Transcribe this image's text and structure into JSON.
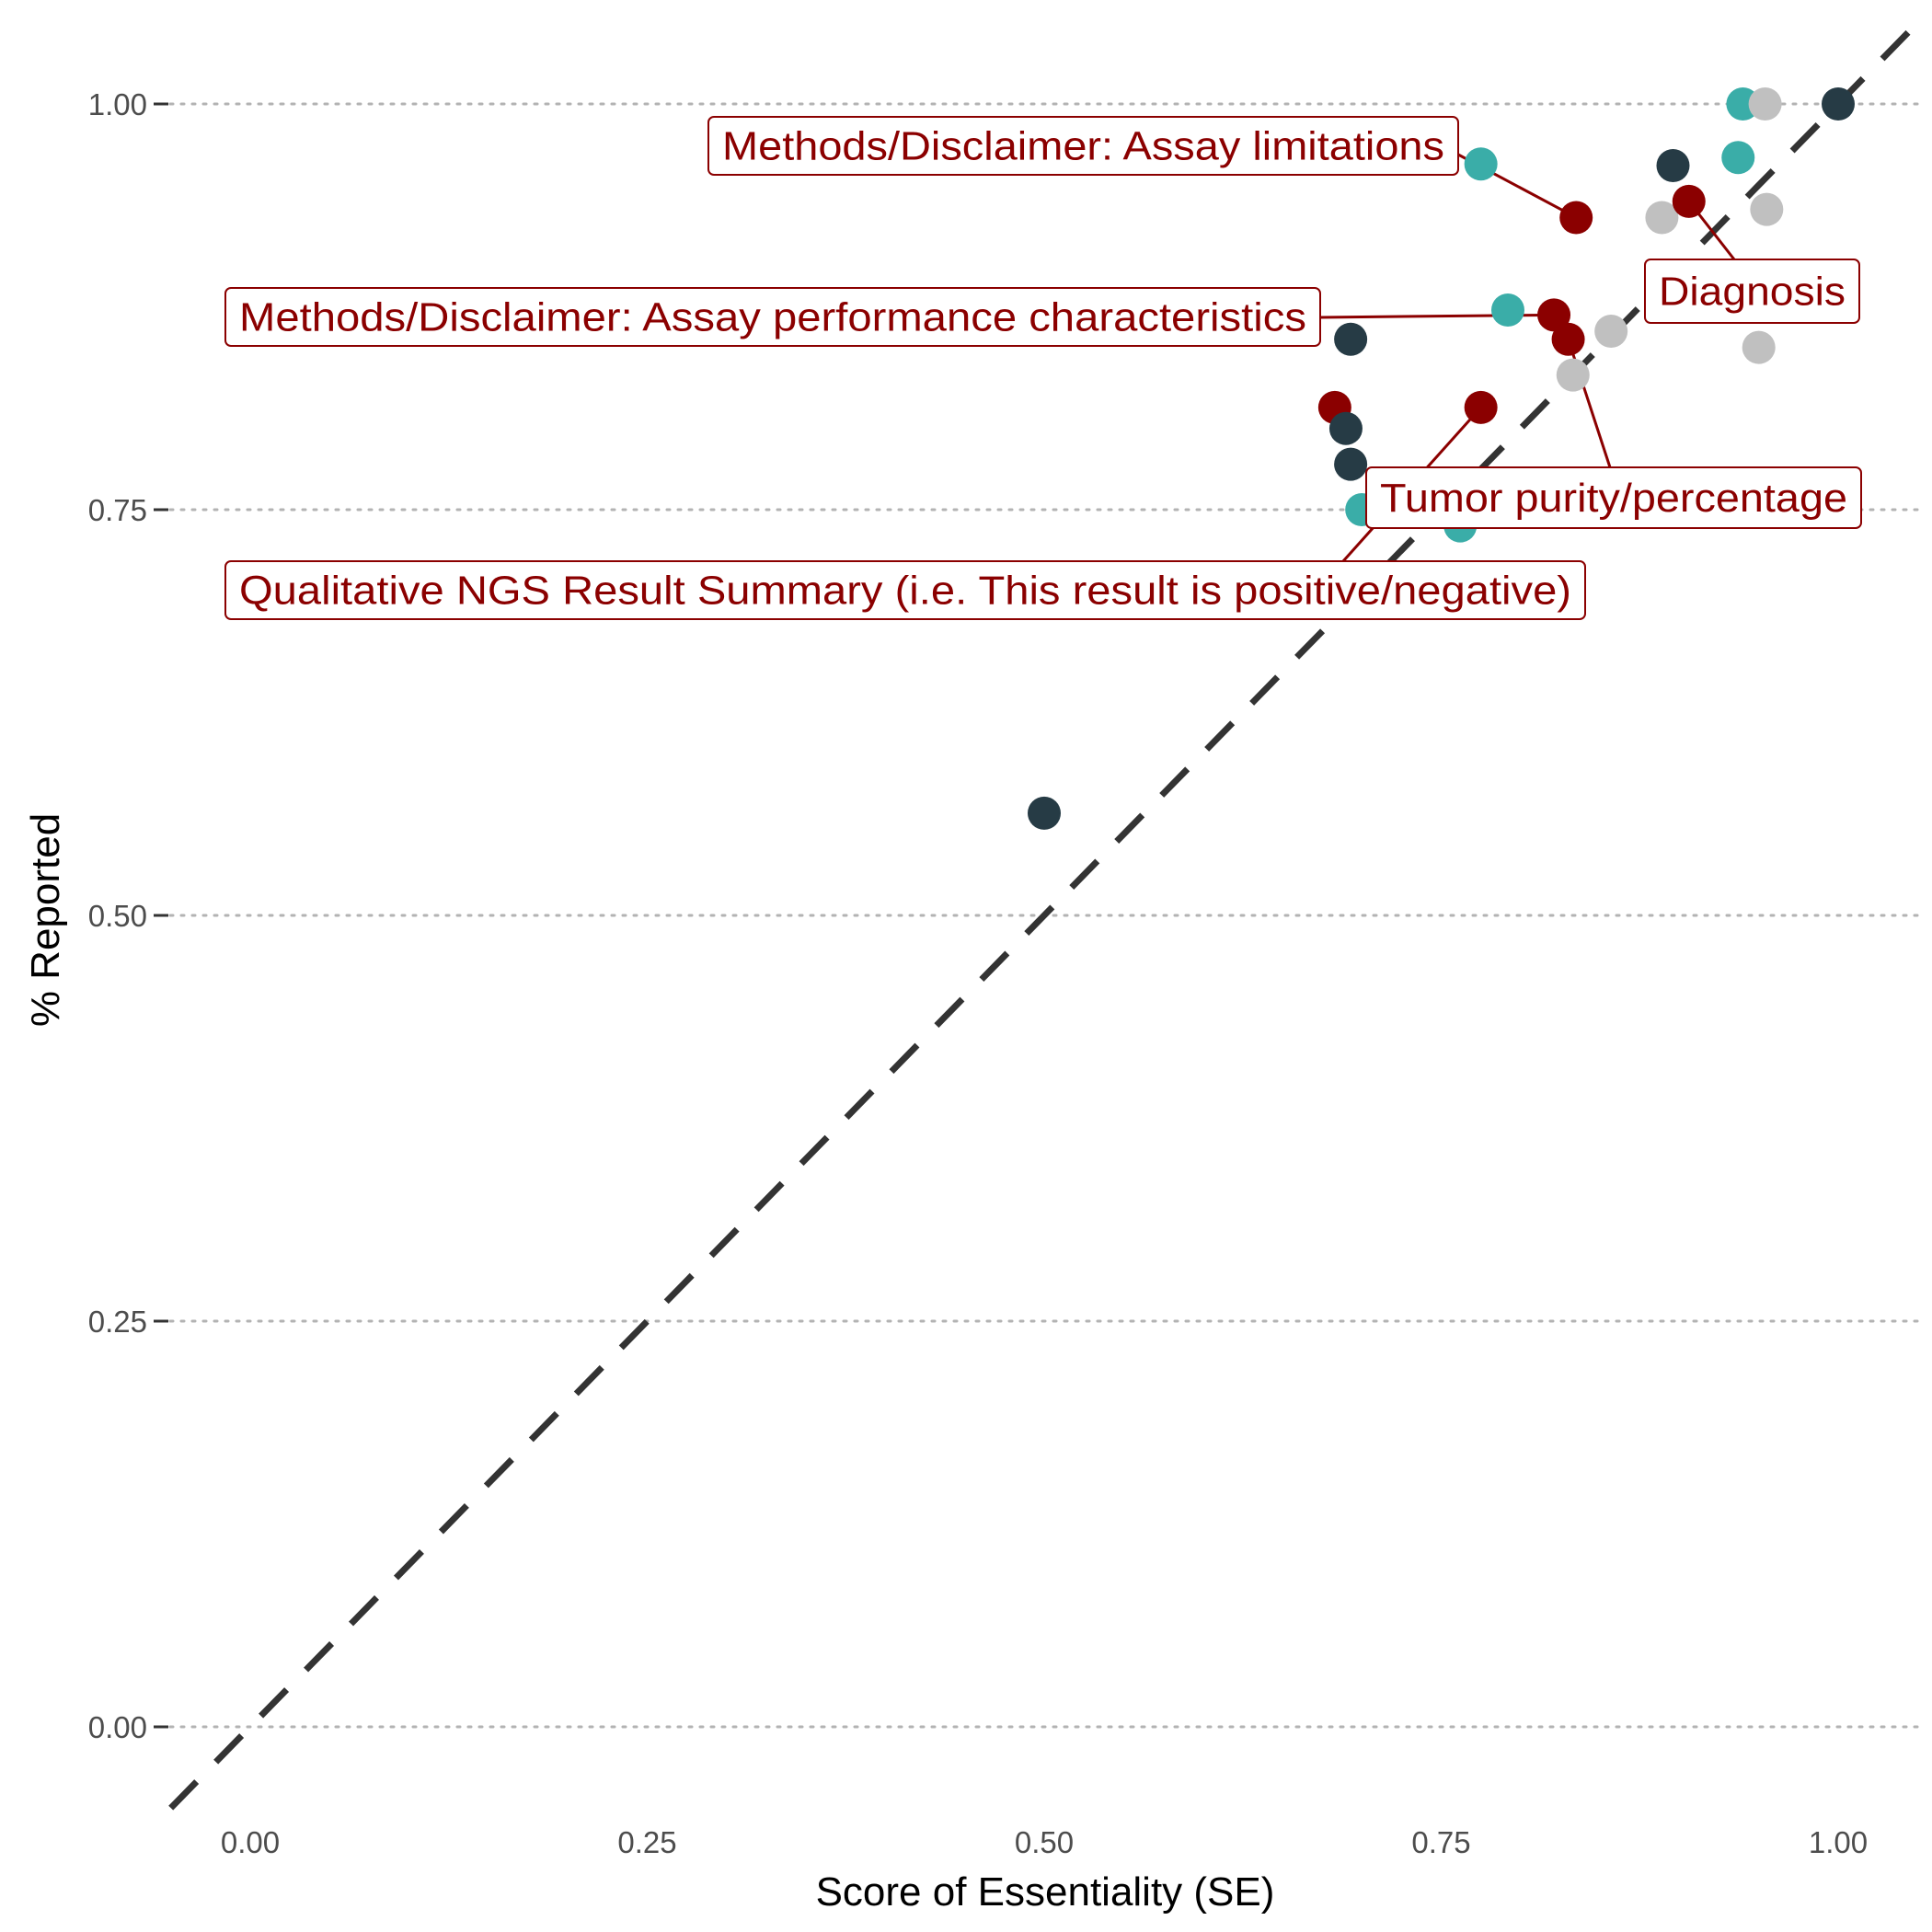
{
  "chart_data": {
    "type": "scatter",
    "xlabel": "Score of Essentiality (SE)",
    "ylabel": "% Reported",
    "xlim": [
      -0.05,
      1.05
    ],
    "ylim": [
      -0.05,
      1.05
    ],
    "x_ticks": [
      0.0,
      0.25,
      0.5,
      0.75,
      1.0
    ],
    "x_tick_labels": [
      "0.00",
      "0.25",
      "0.50",
      "0.75",
      "1.00"
    ],
    "y_ticks": [
      0.0,
      0.25,
      0.5,
      0.75,
      1.0
    ],
    "y_tick_labels": [
      "0.00",
      "0.25",
      "0.50",
      "0.75",
      "1.00"
    ],
    "grid": "horizontal dotted",
    "reference_line": {
      "type": "identity",
      "style": "dashed",
      "color": "#333333"
    },
    "colors": {
      "teal": "#3aada8",
      "dark": "#263b45",
      "gray": "#c0c0c0",
      "highlight": "#8b0000"
    },
    "points": [
      {
        "x": 0.5,
        "y": 0.563,
        "color": "dark"
      },
      {
        "x": 0.683,
        "y": 0.813,
        "color": "highlight"
      },
      {
        "x": 0.69,
        "y": 0.8,
        "color": "dark"
      },
      {
        "x": 0.693,
        "y": 0.778,
        "color": "dark"
      },
      {
        "x": 0.693,
        "y": 0.855,
        "color": "dark"
      },
      {
        "x": 0.7,
        "y": 0.75,
        "color": "teal"
      },
      {
        "x": 0.762,
        "y": 0.74,
        "color": "teal"
      },
      {
        "x": 0.775,
        "y": 0.963,
        "color": "teal"
      },
      {
        "x": 0.775,
        "y": 0.813,
        "color": "highlight"
      },
      {
        "x": 0.792,
        "y": 0.873,
        "color": "teal"
      },
      {
        "x": 0.821,
        "y": 0.87,
        "color": "highlight"
      },
      {
        "x": 0.83,
        "y": 0.855,
        "color": "highlight"
      },
      {
        "x": 0.833,
        "y": 0.833,
        "color": "gray"
      },
      {
        "x": 0.835,
        "y": 0.93,
        "color": "highlight"
      },
      {
        "x": 0.857,
        "y": 0.86,
        "color": "gray"
      },
      {
        "x": 0.889,
        "y": 0.93,
        "color": "gray"
      },
      {
        "x": 0.896,
        "y": 0.962,
        "color": "dark"
      },
      {
        "x": 0.906,
        "y": 0.94,
        "color": "highlight"
      },
      {
        "x": 0.937,
        "y": 0.967,
        "color": "teal"
      },
      {
        "x": 0.94,
        "y": 1.0,
        "color": "teal"
      },
      {
        "x": 0.95,
        "y": 0.85,
        "color": "gray"
      },
      {
        "x": 0.954,
        "y": 1.0,
        "color": "gray"
      },
      {
        "x": 0.955,
        "y": 0.935,
        "color": "gray"
      },
      {
        "x": 1.0,
        "y": 1.0,
        "color": "dark"
      }
    ],
    "annotations": [
      {
        "text": "Methods/Disclaimer: Assay limitations",
        "point_x": 0.835,
        "point_y": 0.93
      },
      {
        "text": "Diagnosis",
        "point_x": 0.906,
        "point_y": 0.94
      },
      {
        "text": "Methods/Disclaimer: Assay performance characteristics",
        "point_x": 0.821,
        "point_y": 0.87
      },
      {
        "text": "Tumor purity/percentage",
        "point_x": 0.83,
        "point_y": 0.855
      },
      {
        "text": "Qualitative NGS Result Summary (i.e. This result is positive/negative)",
        "point_x": 0.775,
        "point_y": 0.813
      }
    ]
  }
}
